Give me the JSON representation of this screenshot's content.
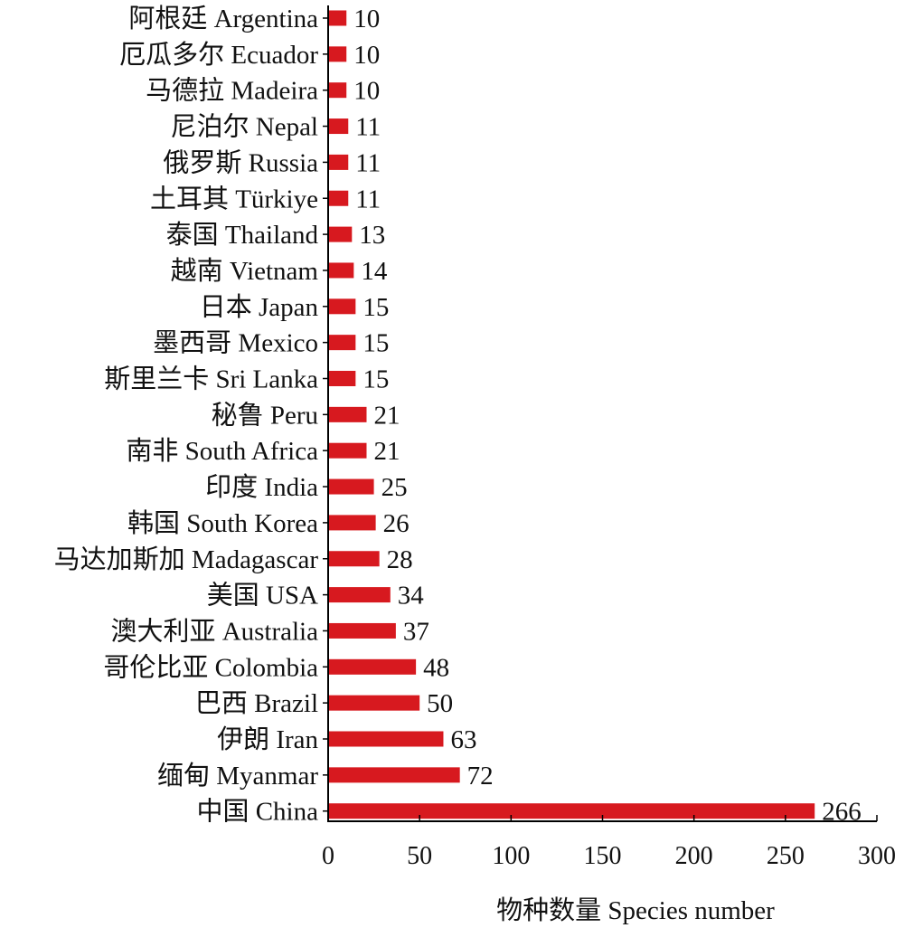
{
  "chart_data": {
    "type": "bar",
    "orientation": "horizontal",
    "categories": [
      "阿根廷 Argentina",
      "厄瓜多尔 Ecuador",
      "马德拉 Madeira",
      "尼泊尔 Nepal",
      "俄罗斯 Russia",
      "土耳其 Türkiye",
      "泰国 Thailand",
      "越南 Vietnam",
      "日本 Japan",
      "墨西哥 Mexico",
      "斯里兰卡 Sri Lanka",
      "秘鲁 Peru",
      "南非 South Africa",
      "印度 India",
      "韩国 South Korea",
      "马达加斯加 Madagascar",
      "美国 USA",
      "澳大利亚 Australia",
      "哥伦比亚 Colombia",
      "巴西 Brazil",
      "伊朗 Iran",
      "缅甸 Myanmar",
      "中国 China"
    ],
    "values": [
      10,
      10,
      10,
      11,
      11,
      11,
      13,
      14,
      15,
      15,
      15,
      21,
      21,
      25,
      26,
      28,
      34,
      37,
      48,
      50,
      63,
      72,
      266
    ],
    "xlabel": "物种数量 Species number",
    "xlim": [
      0,
      300
    ],
    "xticks": [
      "0",
      "50",
      "100",
      "150",
      "200",
      "250",
      "300"
    ],
    "bar_color": "#d7191f",
    "grid": false,
    "legend": "none"
  }
}
